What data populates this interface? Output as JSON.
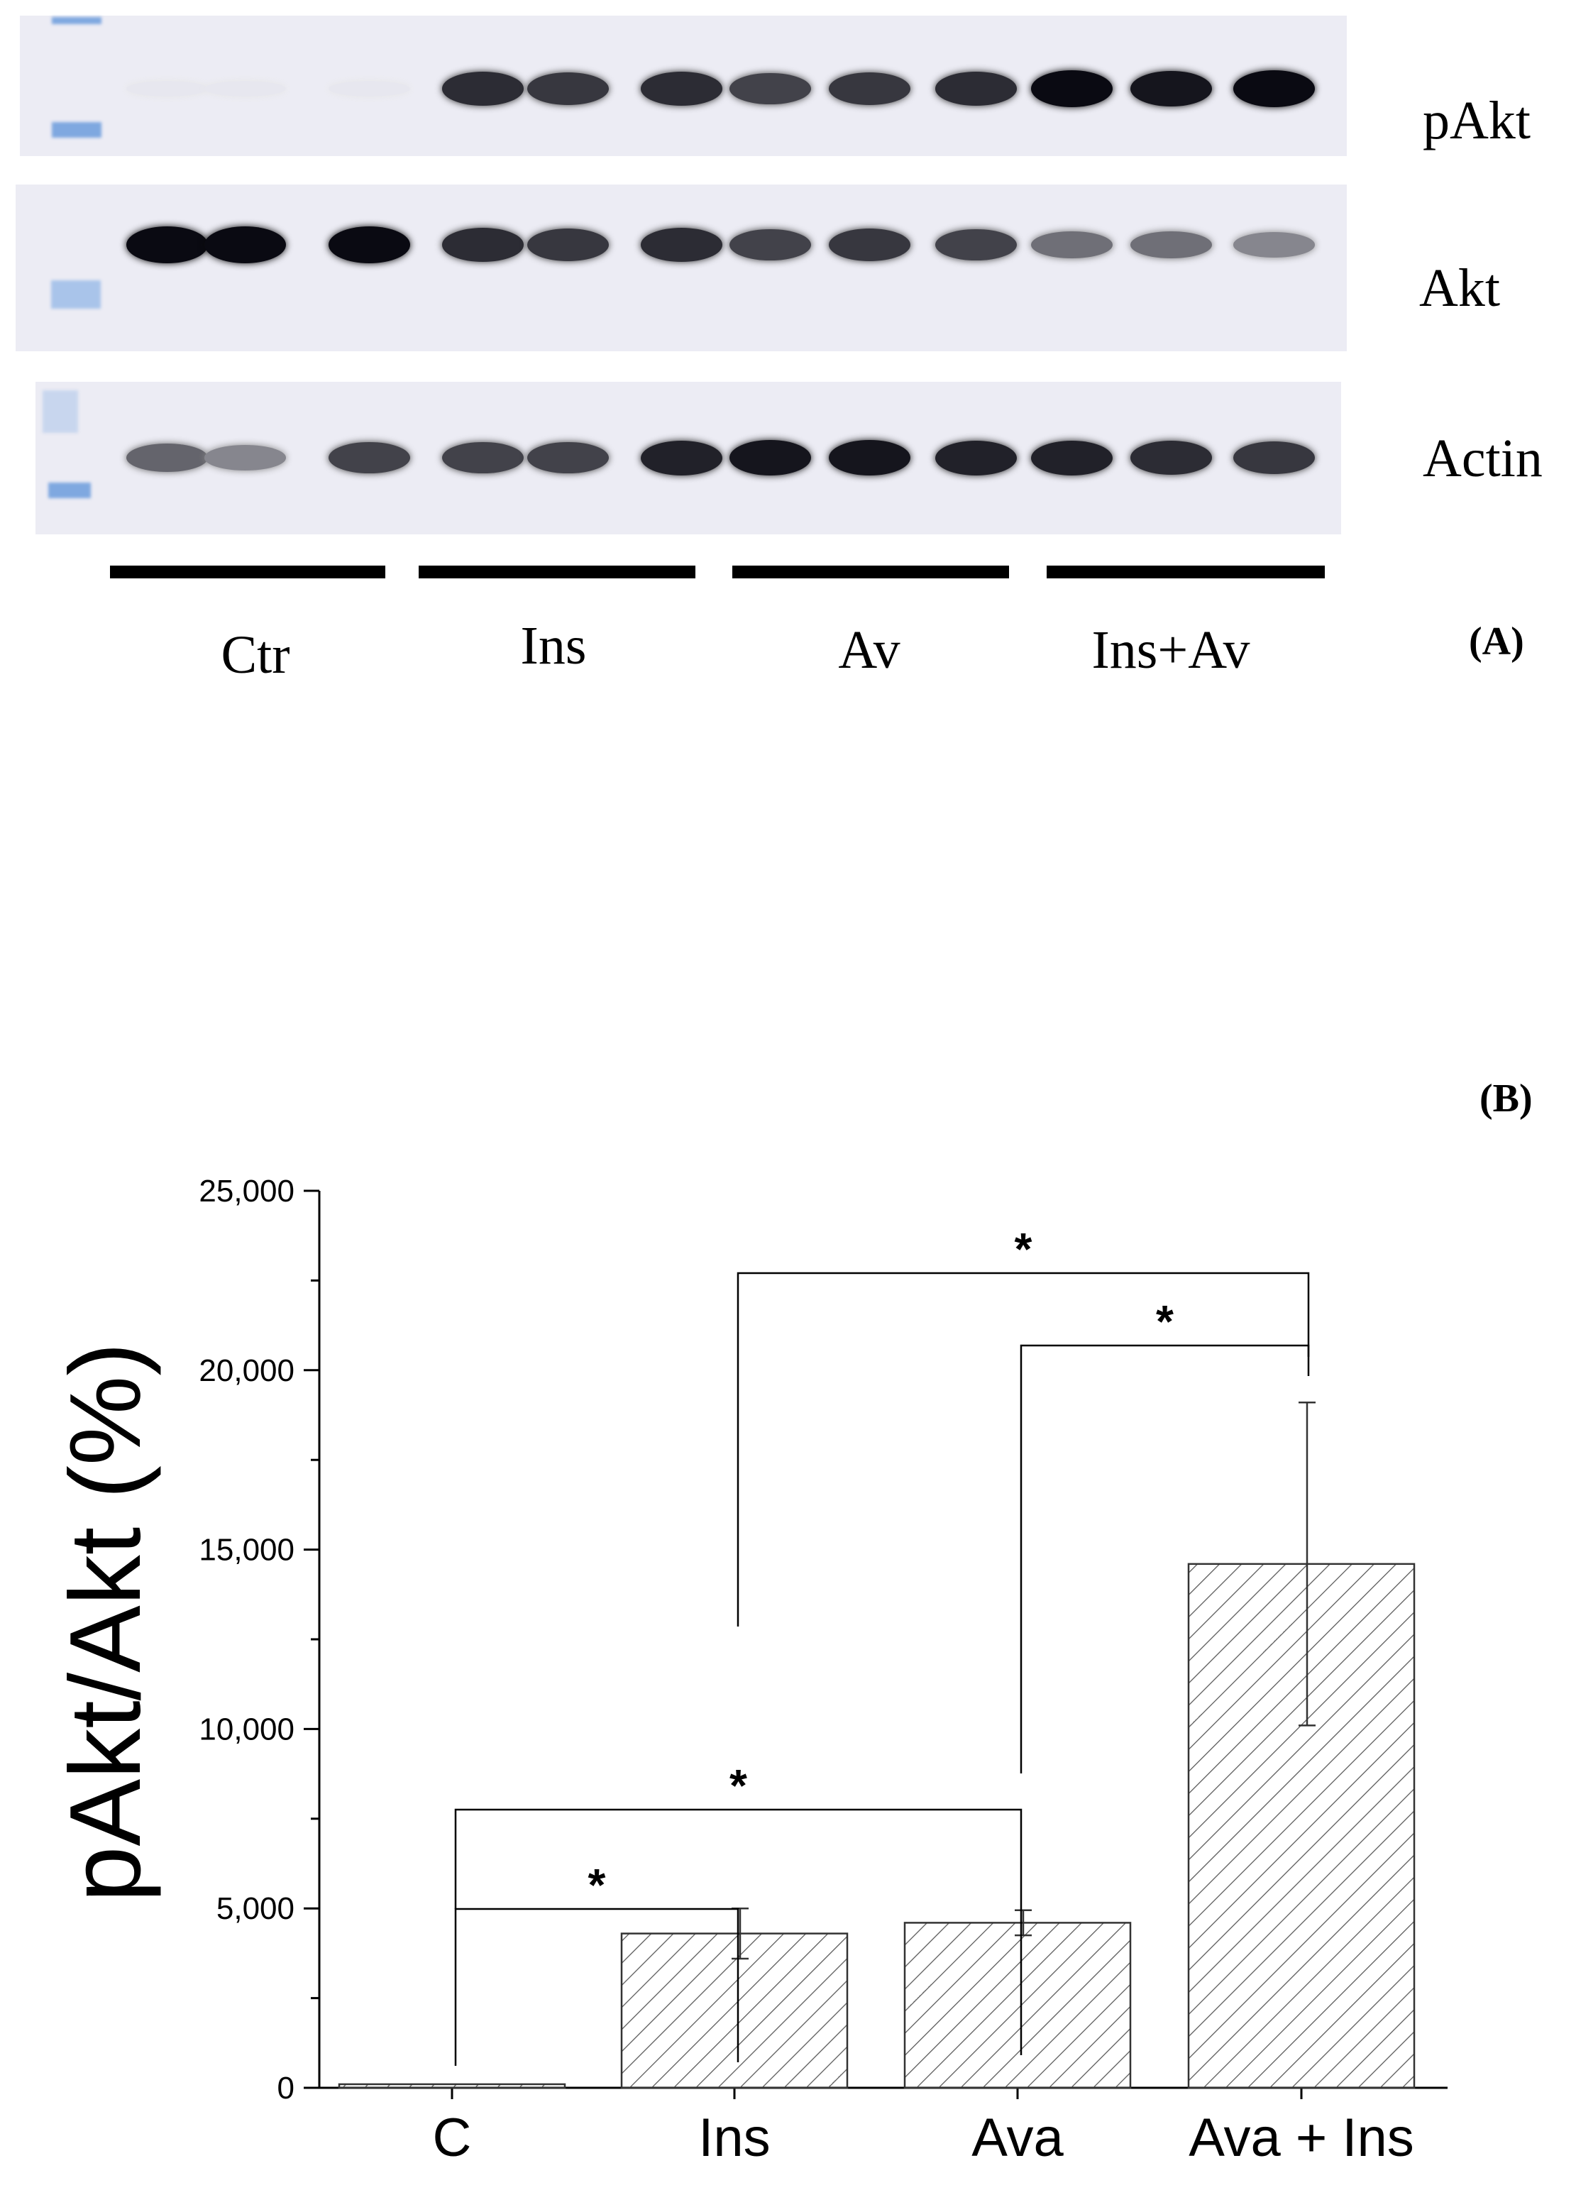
{
  "panel_a": {
    "label": "(A)",
    "blots": [
      {
        "name": "pakt",
        "label": "pAkt"
      },
      {
        "name": "akt",
        "label": "Akt"
      },
      {
        "name": "actin",
        "label": "Actin"
      }
    ],
    "groups": [
      "Ctr",
      "Ins",
      "Av",
      "Ins+Av"
    ],
    "band_intensity": {
      "pakt": [
        0.02,
        0.02,
        0.02,
        0.85,
        0.8,
        0.85,
        0.75,
        0.8,
        0.85,
        1.0,
        0.95,
        1.0
      ],
      "akt": [
        1.0,
        1.0,
        1.0,
        0.85,
        0.8,
        0.85,
        0.75,
        0.8,
        0.75,
        0.55,
        0.55,
        0.45
      ],
      "actin": [
        0.6,
        0.45,
        0.75,
        0.75,
        0.75,
        0.9,
        0.95,
        0.95,
        0.9,
        0.9,
        0.85,
        0.8
      ]
    }
  },
  "panel_b": {
    "label": "(B)",
    "chart_data": {
      "type": "bar",
      "categories": [
        "C",
        "Ins",
        "Ava",
        "Ava + Ins"
      ],
      "values": [
        100,
        4300,
        4600,
        14600
      ],
      "errors": [
        0,
        700,
        350,
        4500
      ],
      "ylabel": "pAkt/Akt (%)",
      "ylim": [
        0,
        25000
      ],
      "yticks": [
        0,
        5000,
        10000,
        15000,
        20000,
        25000
      ],
      "ytick_labels": [
        "0",
        "5,000",
        "10,000",
        "15,000",
        "20,000",
        "25,000"
      ],
      "bar_fill": "hatched",
      "significance": [
        {
          "from": "C",
          "to": "Ins",
          "label": "*"
        },
        {
          "from": "C",
          "to": "Ava",
          "label": "*"
        },
        {
          "from": "Ava",
          "to": "Ava + Ins",
          "label": "*"
        },
        {
          "from": "Ins",
          "to": "Ava + Ins",
          "label": "*"
        }
      ]
    }
  }
}
